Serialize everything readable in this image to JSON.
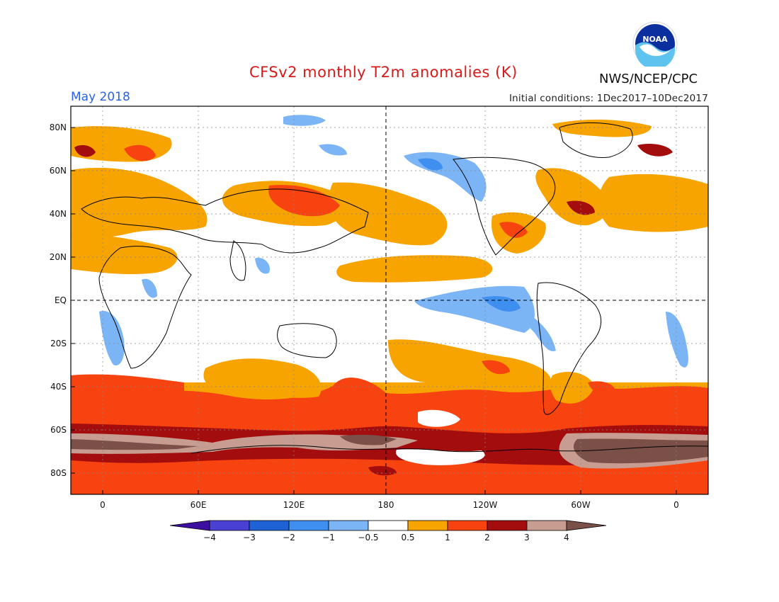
{
  "title": "CFSv2 monthly T2m anomalies (K)",
  "organization": "NWS/NCEP/CPC",
  "logo_text": "NOAA",
  "target_month": "May 2018",
  "initial_conditions": "Initial conditions: 1Dec2017–10Dec2017",
  "map": {
    "projection": "cylindrical equidistant",
    "lon_range_deg_east": [
      -20,
      380
    ],
    "lat_range_deg": [
      -90,
      90
    ],
    "lat_ticks": [
      {
        "value": 80,
        "label": "80N"
      },
      {
        "value": 60,
        "label": "60N"
      },
      {
        "value": 40,
        "label": "40N"
      },
      {
        "value": 20,
        "label": "20N"
      },
      {
        "value": 0,
        "label": "EQ"
      },
      {
        "value": -20,
        "label": "20S"
      },
      {
        "value": -40,
        "label": "40S"
      },
      {
        "value": -60,
        "label": "60S"
      },
      {
        "value": -80,
        "label": "80S"
      }
    ],
    "lon_ticks": [
      {
        "value": 0,
        "label": "0"
      },
      {
        "value": 60,
        "label": "60E"
      },
      {
        "value": 120,
        "label": "120E"
      },
      {
        "value": 180,
        "label": "180"
      },
      {
        "value": 240,
        "label": "120W"
      },
      {
        "value": 300,
        "label": "60W"
      },
      {
        "value": 360,
        "label": "0"
      }
    ],
    "reference_lines": [
      "equator",
      "date line 180"
    ]
  },
  "colorbar": {
    "labels": [
      "−4",
      "−3",
      "−2",
      "−1",
      "−0.5",
      "0.5",
      "1",
      "2",
      "3",
      "4"
    ],
    "bin_colors": [
      "#3d0fa0",
      "#4b40d4",
      "#1e62d6",
      "#3f8ff0",
      "#7cb5f5",
      "#ffffff",
      "#f7a300",
      "#f74310",
      "#a30d0d",
      "#c79d92",
      "#7a5048"
    ]
  }
}
